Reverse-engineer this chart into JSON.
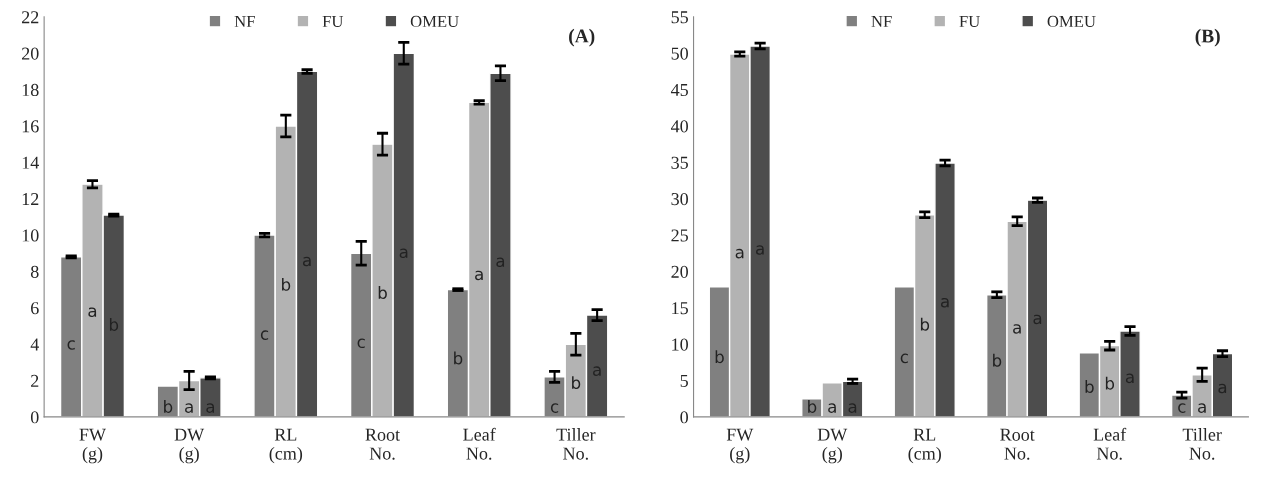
{
  "chart_data": [
    {
      "type": "bar",
      "categories": [
        "FW\n(g)",
        "DW\n(g)",
        "RL\n(cm)",
        "Root\nNo.",
        "Leaf\nNo.",
        "Tiller\nNo."
      ],
      "ylim": [
        0,
        22
      ],
      "yticks": [
        0,
        2,
        4,
        6,
        8,
        10,
        12,
        14,
        16,
        18,
        20,
        22
      ],
      "legend": "top",
      "grid": false,
      "annotations": [
        "(A)"
      ],
      "series": [
        {
          "name": "NF",
          "color": "#808080",
          "values": [
            8.8,
            1.7,
            10.0,
            9.0,
            7.0,
            2.2
          ],
          "errors": [
            0.05,
            null,
            0.1,
            0.65,
            0.05,
            0.3
          ],
          "value_labels": [
            "c",
            "b",
            "c",
            "c",
            "b",
            "c"
          ]
        },
        {
          "name": "FU",
          "color": "#b3b3b3",
          "values": [
            12.8,
            2.0,
            16.0,
            15.0,
            17.3,
            4.0
          ],
          "errors": [
            0.2,
            0.5,
            0.6,
            0.6,
            0.1,
            0.6
          ],
          "value_labels": [
            "a",
            "a",
            "b",
            "b",
            "a",
            "b"
          ]
        },
        {
          "name": "OMEU",
          "color": "#4d4d4d",
          "values": [
            11.1,
            2.15,
            19.0,
            20.0,
            18.9,
            5.6
          ],
          "errors": [
            0.05,
            0.05,
            0.1,
            0.6,
            0.4,
            0.3
          ],
          "value_labels": [
            "b",
            "a",
            "a",
            "a",
            "a",
            "a"
          ]
        }
      ]
    },
    {
      "type": "bar",
      "categories": [
        "FW\n(g)",
        "DW\n(g)",
        "RL\n(cm)",
        "Root\nNo.",
        "Leaf\nNo.",
        "Tiller\nNo."
      ],
      "ylim": [
        0,
        55
      ],
      "yticks": [
        0,
        5,
        10,
        15,
        20,
        25,
        30,
        35,
        40,
        45,
        50,
        55
      ],
      "legend": "top",
      "grid": false,
      "annotations": [
        "(B)"
      ],
      "series": [
        {
          "name": "NF",
          "color": "#808080",
          "values": [
            17.9,
            2.5,
            17.9,
            16.8,
            8.8,
            3.0
          ],
          "errors": [
            null,
            null,
            null,
            0.4,
            null,
            0.4
          ],
          "value_labels": [
            "b",
            "b",
            "c",
            "b",
            "b",
            "c"
          ]
        },
        {
          "name": "FU",
          "color": "#b3b3b3",
          "values": [
            49.9,
            4.7,
            27.8,
            26.9,
            9.8,
            5.8
          ],
          "errors": [
            0.3,
            null,
            0.4,
            0.6,
            0.6,
            0.9
          ],
          "value_labels": [
            "a",
            "a",
            "b",
            "a",
            "b",
            "a"
          ]
        },
        {
          "name": "OMEU",
          "color": "#4d4d4d",
          "values": [
            51.0,
            4.9,
            34.9,
            29.8,
            11.8,
            8.7
          ],
          "errors": [
            0.4,
            0.3,
            0.4,
            0.3,
            0.6,
            0.4
          ],
          "value_labels": [
            "a",
            "a",
            "a",
            "a",
            "a",
            "a"
          ]
        }
      ]
    }
  ]
}
